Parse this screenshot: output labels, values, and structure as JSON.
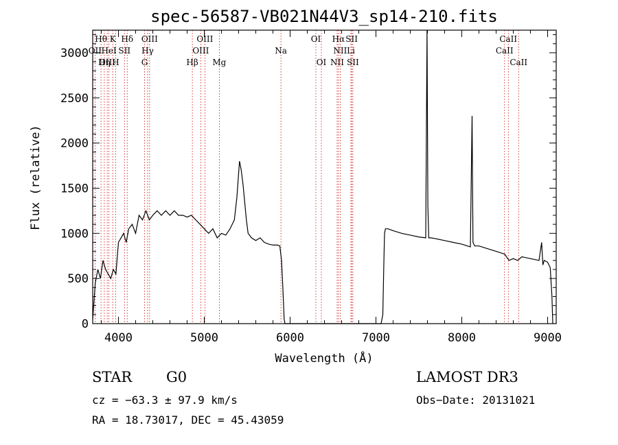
{
  "chart_data": {
    "type": "line",
    "title": "spec-56587-VB021N44V3_sp14-210.fits",
    "xlabel": "Wavelength (Å)",
    "ylabel": "Flux (relative)",
    "xlim": [
      3700,
      9100
    ],
    "ylim": [
      0,
      3250
    ],
    "xticks": [
      4000,
      5000,
      6000,
      7000,
      8000,
      9000
    ],
    "yticks": [
      0,
      500,
      1000,
      1500,
      2000,
      2500,
      3000
    ],
    "series": [
      {
        "name": "spectrum",
        "x": [
          3700,
          3730,
          3760,
          3790,
          3820,
          3850,
          3880,
          3910,
          3940,
          3970,
          4000,
          4030,
          4060,
          4090,
          4120,
          4160,
          4200,
          4240,
          4280,
          4320,
          4360,
          4400,
          4450,
          4500,
          4550,
          4600,
          4650,
          4700,
          4750,
          4800,
          4850,
          4900,
          4950,
          5000,
          5050,
          5100,
          5150,
          5200,
          5250,
          5300,
          5350,
          5380,
          5410,
          5430,
          5450,
          5470,
          5490,
          5510,
          5550,
          5600,
          5650,
          5700,
          5750,
          5800,
          5850,
          5880,
          5900,
          5915,
          5930,
          5940,
          5960,
          6000,
          6200,
          6400,
          6600,
          6800,
          7000,
          7060,
          7080,
          7090,
          7100,
          7110,
          7140,
          7200,
          7300,
          7400,
          7500,
          7580,
          7595,
          7605,
          7615,
          7640,
          7700,
          7800,
          7900,
          8000,
          8100,
          8120,
          8130,
          8150,
          8200,
          8300,
          8400,
          8500,
          8550,
          8600,
          8650,
          8700,
          8800,
          8900,
          8930,
          8945,
          8960,
          9000,
          9030,
          9050,
          9060
        ],
        "y": [
          50,
          450,
          600,
          500,
          700,
          600,
          550,
          500,
          600,
          550,
          900,
          950,
          1000,
          900,
          1050,
          1100,
          1000,
          1200,
          1150,
          1250,
          1150,
          1200,
          1250,
          1200,
          1250,
          1200,
          1250,
          1200,
          1200,
          1180,
          1200,
          1150,
          1100,
          1050,
          1000,
          1050,
          950,
          1000,
          980,
          1050,
          1150,
          1400,
          1800,
          1700,
          1550,
          1350,
          1150,
          1000,
          950,
          920,
          950,
          900,
          880,
          870,
          870,
          860,
          700,
          400,
          50,
          0,
          0,
          0,
          0,
          0,
          0,
          0,
          0,
          0,
          100,
          600,
          1000,
          1050,
          1050,
          1030,
          1000,
          980,
          960,
          950,
          3300,
          1300,
          950,
          950,
          940,
          920,
          900,
          880,
          850,
          2300,
          900,
          860,
          860,
          830,
          800,
          770,
          700,
          720,
          700,
          740,
          720,
          700,
          900,
          650,
          700,
          680,
          620,
          300,
          0
        ]
      }
    ],
    "line_labels": [
      {
        "text": "Hθ",
        "x": 3797,
        "row": 0
      },
      {
        "text": "K",
        "x": 3934,
        "row": 0
      },
      {
        "text": "Hδ",
        "x": 4102,
        "row": 0
      },
      {
        "text": "OIII",
        "x": 4363,
        "row": 0
      },
      {
        "text": "OIII",
        "x": 5007,
        "row": 0
      },
      {
        "text": "OI",
        "x": 6300,
        "row": 0
      },
      {
        "text": "Hα",
        "x": 6563,
        "row": 0
      },
      {
        "text": "SII",
        "x": 6717,
        "row": 0
      },
      {
        "text": "CaII",
        "x": 8542,
        "row": 0
      },
      {
        "text": "OII",
        "x": 3727,
        "row": 1
      },
      {
        "text": "HeI",
        "x": 3889,
        "row": 1
      },
      {
        "text": "SII",
        "x": 4070,
        "row": 1
      },
      {
        "text": "Hγ",
        "x": 4340,
        "row": 1
      },
      {
        "text": "OIII",
        "x": 4959,
        "row": 1
      },
      {
        "text": "Na",
        "x": 5893,
        "row": 1
      },
      {
        "text": "NII",
        "x": 6583,
        "row": 1
      },
      {
        "text": "Li",
        "x": 6708,
        "row": 1
      },
      {
        "text": "CaII",
        "x": 8498,
        "row": 1
      },
      {
        "text": "OIII",
        "x": 3869,
        "row": 2
      },
      {
        "text": "Hη",
        "x": 3835,
        "row": 2
      },
      {
        "text": "H",
        "x": 3968,
        "row": 2
      },
      {
        "text": "G",
        "x": 4304,
        "row": 2
      },
      {
        "text": "Hβ",
        "x": 4861,
        "row": 2
      },
      {
        "text": "Mg",
        "x": 5175,
        "row": 2
      },
      {
        "text": "OI",
        "x": 6364,
        "row": 2
      },
      {
        "text": "NII",
        "x": 6548,
        "row": 2
      },
      {
        "text": "SII",
        "x": 6731,
        "row": 2
      },
      {
        "text": "CaII",
        "x": 8662,
        "row": 2
      }
    ],
    "line_markers": [
      3727,
      3797,
      3835,
      3869,
      3889,
      3934,
      3968,
      4070,
      4102,
      4304,
      4340,
      4363,
      4861,
      4959,
      5007,
      5175,
      5893,
      6300,
      6364,
      6548,
      6563,
      6583,
      6708,
      6717,
      6731,
      8498,
      8542,
      8662
    ],
    "colors": {
      "spectrum": "#000000",
      "line_markers": "#cc0000",
      "axes": "#000000"
    }
  },
  "info": {
    "object_class": "STAR",
    "subclass": "G0",
    "survey": "LAMOST DR3",
    "cz": "cz = −63.3 ± 97.9 km/s",
    "obs_date": "Obs−Date: 20131021",
    "coords": "RA =  18.73017, DEC =  45.43059"
  }
}
